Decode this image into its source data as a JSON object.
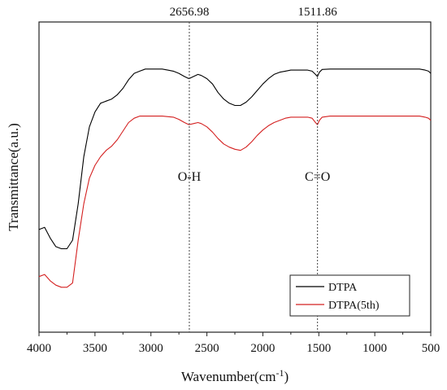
{
  "chart_data": {
    "type": "line",
    "title": "",
    "xlabel": "Wavenumber(cm",
    "xlabel_sup": "-1",
    "xlabel_tail": ")",
    "ylabel": "Transmittance(a.u.)",
    "xlim": [
      4000,
      500
    ],
    "x_reversed": true,
    "y_ticks_shown": false,
    "x_ticks": [
      4000,
      3500,
      3000,
      2500,
      2000,
      1500,
      1000,
      500
    ],
    "x_tick_labels": [
      "4000",
      "3500",
      "3000",
      "2500",
      "2000",
      "1500",
      "1000",
      "500"
    ],
    "grid": false,
    "legend_position": "bottom-right",
    "reference_lines": [
      {
        "x": 2656.98,
        "label": "2656.98",
        "annotation": "O-H"
      },
      {
        "x": 1511.86,
        "label": "1511.86",
        "annotation": "C=O"
      }
    ],
    "series": [
      {
        "name": "DTPA",
        "color": "#000000",
        "points": [
          [
            4000,
            18
          ],
          [
            3950,
            19
          ],
          [
            3900,
            14
          ],
          [
            3850,
            10
          ],
          [
            3800,
            9
          ],
          [
            3750,
            9
          ],
          [
            3700,
            13
          ],
          [
            3650,
            30
          ],
          [
            3600,
            52
          ],
          [
            3550,
            66
          ],
          [
            3500,
            73
          ],
          [
            3450,
            77
          ],
          [
            3400,
            78
          ],
          [
            3350,
            79
          ],
          [
            3300,
            81
          ],
          [
            3250,
            84
          ],
          [
            3200,
            88
          ],
          [
            3150,
            91
          ],
          [
            3100,
            92
          ],
          [
            3050,
            93
          ],
          [
            3000,
            93
          ],
          [
            2950,
            93
          ],
          [
            2900,
            93
          ],
          [
            2850,
            92.5
          ],
          [
            2800,
            92
          ],
          [
            2750,
            91
          ],
          [
            2700,
            89.5
          ],
          [
            2660,
            88.5
          ],
          [
            2620,
            89.5
          ],
          [
            2580,
            90.5
          ],
          [
            2550,
            90
          ],
          [
            2500,
            88.5
          ],
          [
            2450,
            86
          ],
          [
            2400,
            82
          ],
          [
            2350,
            79
          ],
          [
            2300,
            77
          ],
          [
            2250,
            76
          ],
          [
            2200,
            76
          ],
          [
            2150,
            77.5
          ],
          [
            2100,
            80
          ],
          [
            2050,
            83
          ],
          [
            2000,
            86
          ],
          [
            1950,
            88.5
          ],
          [
            1900,
            90.5
          ],
          [
            1850,
            91.5
          ],
          [
            1800,
            92
          ],
          [
            1750,
            92.5
          ],
          [
            1700,
            92.5
          ],
          [
            1650,
            92.5
          ],
          [
            1600,
            92.5
          ],
          [
            1560,
            92
          ],
          [
            1530,
            90.5
          ],
          [
            1512,
            89.5
          ],
          [
            1495,
            91.5
          ],
          [
            1470,
            92.8
          ],
          [
            1400,
            93
          ],
          [
            1300,
            93
          ],
          [
            1200,
            93
          ],
          [
            1100,
            93
          ],
          [
            1000,
            93
          ],
          [
            900,
            93
          ],
          [
            800,
            93
          ],
          [
            700,
            93
          ],
          [
            600,
            93
          ],
          [
            550,
            92.5
          ],
          [
            520,
            92
          ],
          [
            500,
            91
          ]
        ]
      },
      {
        "name": "DTPA(5th)",
        "color": "#d42020",
        "points": [
          [
            4000,
            -4
          ],
          [
            3950,
            -3
          ],
          [
            3900,
            -6
          ],
          [
            3850,
            -8
          ],
          [
            3800,
            -9
          ],
          [
            3750,
            -9
          ],
          [
            3700,
            -7
          ],
          [
            3650,
            13
          ],
          [
            3600,
            30
          ],
          [
            3550,
            42
          ],
          [
            3500,
            48
          ],
          [
            3450,
            52
          ],
          [
            3400,
            55
          ],
          [
            3350,
            57
          ],
          [
            3300,
            60
          ],
          [
            3250,
            64
          ],
          [
            3200,
            68
          ],
          [
            3150,
            70
          ],
          [
            3100,
            71
          ],
          [
            3050,
            71
          ],
          [
            3000,
            71
          ],
          [
            2900,
            71
          ],
          [
            2800,
            70.5
          ],
          [
            2750,
            69.5
          ],
          [
            2700,
            68
          ],
          [
            2660,
            67
          ],
          [
            2620,
            67.5
          ],
          [
            2580,
            68
          ],
          [
            2550,
            67.5
          ],
          [
            2500,
            66
          ],
          [
            2450,
            63.5
          ],
          [
            2400,
            60.5
          ],
          [
            2350,
            58
          ],
          [
            2300,
            56.5
          ],
          [
            2250,
            55.5
          ],
          [
            2200,
            55
          ],
          [
            2150,
            56.5
          ],
          [
            2100,
            59
          ],
          [
            2050,
            62
          ],
          [
            2000,
            64.5
          ],
          [
            1950,
            66.5
          ],
          [
            1900,
            68
          ],
          [
            1850,
            69
          ],
          [
            1800,
            70
          ],
          [
            1750,
            70.5
          ],
          [
            1700,
            70.5
          ],
          [
            1650,
            70.5
          ],
          [
            1600,
            70.5
          ],
          [
            1560,
            70
          ],
          [
            1530,
            68
          ],
          [
            1512,
            67
          ],
          [
            1495,
            69
          ],
          [
            1470,
            70.5
          ],
          [
            1400,
            71
          ],
          [
            1300,
            71
          ],
          [
            1200,
            71
          ],
          [
            1100,
            71
          ],
          [
            1000,
            71
          ],
          [
            900,
            71
          ],
          [
            800,
            71
          ],
          [
            700,
            71
          ],
          [
            600,
            71
          ],
          [
            550,
            70.5
          ],
          [
            520,
            70
          ],
          [
            500,
            69
          ]
        ]
      }
    ]
  }
}
